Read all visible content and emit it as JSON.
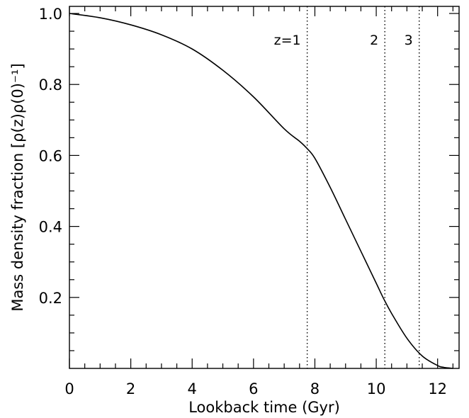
{
  "chart_data": {
    "type": "line",
    "xlabel": "Lookback time (Gyr)",
    "ylabel": "Mass density fraction [ρ(z)ρ(0)⁻¹]",
    "xlim": [
      0,
      12.7
    ],
    "ylim": [
      0,
      1.02
    ],
    "xticks": [
      0,
      2,
      4,
      6,
      8,
      10,
      12
    ],
    "xtick_labels": [
      "0",
      "2",
      "4",
      "6",
      "8",
      "10",
      "12"
    ],
    "yticks": [
      0.2,
      0.4,
      0.6,
      0.8,
      1.0
    ],
    "ytick_labels": [
      "0.2",
      "0.4",
      "0.6",
      "0.8",
      "1.0"
    ],
    "grid": false,
    "series": [
      {
        "x": [
          0,
          1,
          2,
          3,
          4,
          5,
          6,
          7,
          7.5,
          7.74,
          8,
          8.5,
          9,
          9.5,
          10,
          10.25,
          10.5,
          11,
          11.5,
          12,
          12.2,
          12.4,
          12.5
        ],
        "y": [
          1.0,
          0.988,
          0.968,
          0.94,
          0.9,
          0.84,
          0.765,
          0.675,
          0.64,
          0.62,
          0.592,
          0.51,
          0.42,
          0.33,
          0.24,
          0.195,
          0.155,
          0.085,
          0.035,
          0.008,
          0.003,
          0.001,
          0.0
        ]
      }
    ],
    "annotations": [
      {
        "text": "z=1",
        "x": 7.75
      },
      {
        "text": "2",
        "x": 10.28
      },
      {
        "text": "3",
        "x": 11.4
      }
    ]
  }
}
